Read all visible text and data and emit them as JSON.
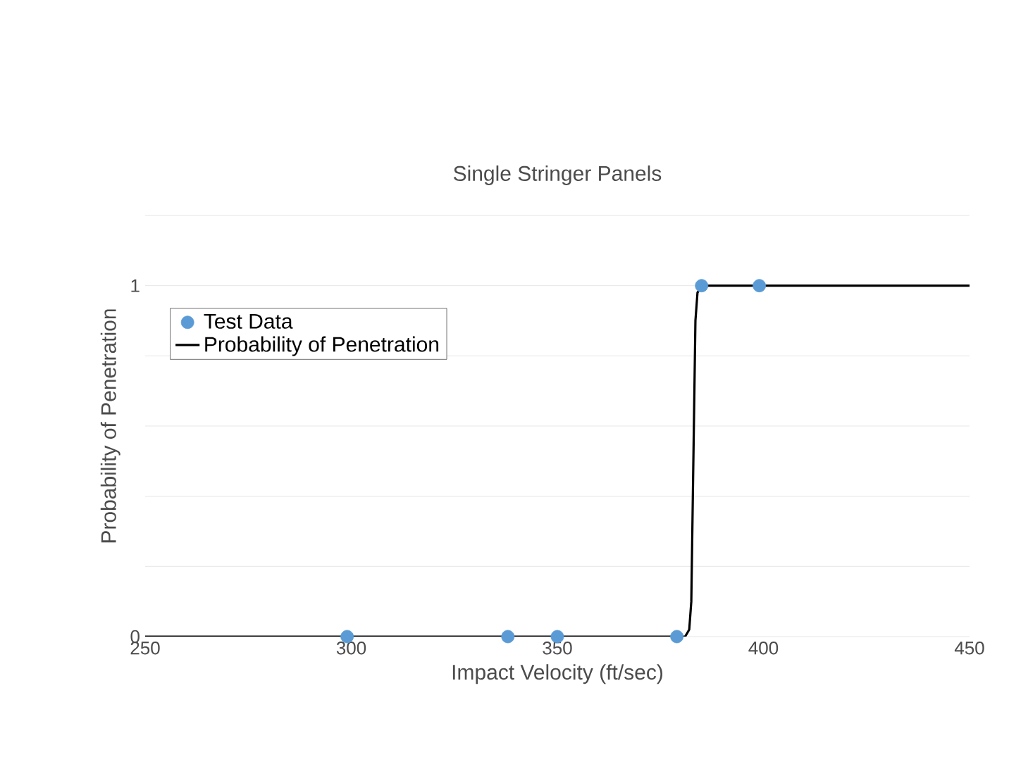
{
  "chart_data": {
    "type": "scatter",
    "title": "Single Stringer Panels",
    "xlabel": "Impact Velocity (ft/sec)",
    "ylabel": "Probability of Penetration",
    "series": [
      {
        "name": "Test Data",
        "color": "#5b9bd5",
        "marker": "circle",
        "x": [
          299,
          338,
          350,
          379,
          385,
          399
        ],
        "values": [
          0,
          0,
          0,
          0,
          1,
          1
        ]
      },
      {
        "name": "Probability of Penetration",
        "type": "line",
        "color": "#000000",
        "marker": "none",
        "line_style": "solid",
        "x": [
          250,
          381,
          382,
          382.5,
          383,
          383.5,
          384,
          385,
          450
        ],
        "values": [
          0,
          0,
          0.02,
          0.1,
          0.5,
          0.9,
          0.98,
          1,
          1
        ]
      }
    ],
    "xlim": [
      250,
      450
    ],
    "xticks": [
      250,
      300,
      350,
      400,
      450
    ],
    "ylim": [
      0,
      1.2
    ],
    "yticks": [
      0,
      {
        "value": 0.2,
        "label": null
      },
      {
        "value": 0.4,
        "label": null
      },
      {
        "value": 0.6,
        "label": null
      },
      {
        "value": 0.8,
        "label": null
      },
      1,
      {
        "value": 1.2,
        "label": null
      }
    ],
    "grid": "y",
    "legend": "top left"
  }
}
